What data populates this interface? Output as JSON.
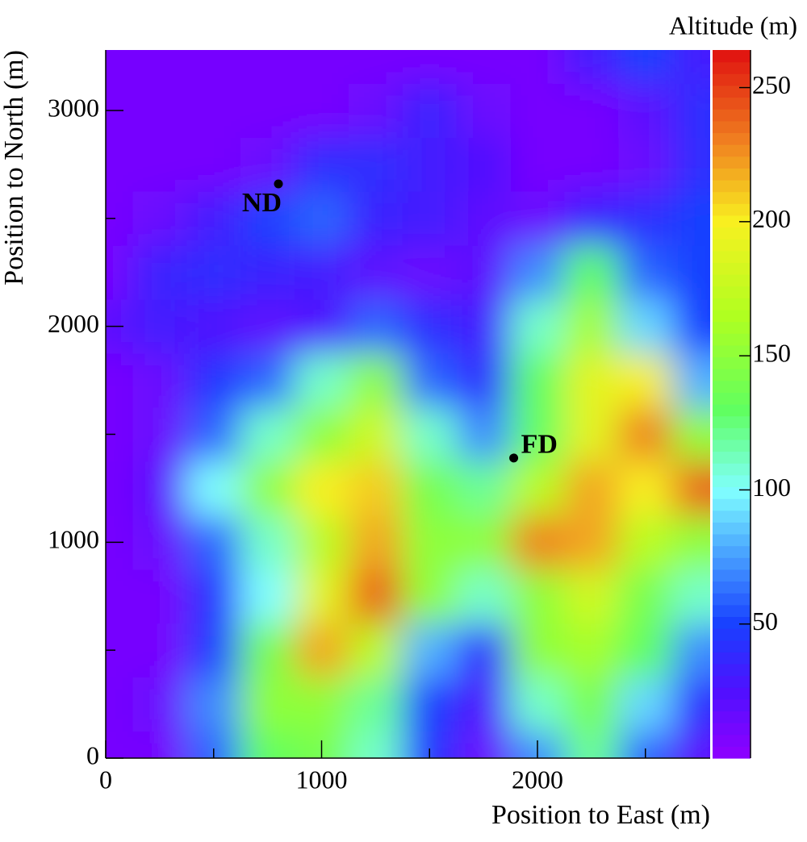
{
  "chart_data": {
    "type": "heatmap",
    "x_label": "Position to East (m)",
    "y_label": "Position to North (m)",
    "colorbar_title": "Altitude (m)",
    "xlim": [
      0,
      2800
    ],
    "ylim": [
      0,
      3280
    ],
    "xticks": [
      0,
      1000,
      2000
    ],
    "yticks": [
      0,
      1000,
      2000,
      3000
    ],
    "xminorticks": [
      500,
      1500,
      2500
    ],
    "yminorticks": [
      500,
      1500,
      2500
    ],
    "zlim": [
      0,
      264
    ],
    "zticks": [
      50,
      100,
      150,
      200,
      250
    ],
    "colorscale": [
      [
        0,
        "#9000ff"
      ],
      [
        25,
        "#5010ff"
      ],
      [
        50,
        "#1840ff"
      ],
      [
        80,
        "#50b0ff"
      ],
      [
        100,
        "#80ffff"
      ],
      [
        130,
        "#60ff60"
      ],
      [
        165,
        "#b0ff20"
      ],
      [
        200,
        "#f8f020"
      ],
      [
        230,
        "#f08020"
      ],
      [
        264,
        "#e01010"
      ]
    ],
    "x": [
      0,
      250,
      500,
      750,
      1000,
      1250,
      1500,
      1750,
      2000,
      2250,
      2500,
      2750
    ],
    "y": [
      0,
      250,
      500,
      750,
      1000,
      1250,
      1500,
      1750,
      2000,
      2250,
      2500,
      2750,
      3000,
      3250
    ],
    "z": [
      [
        10,
        10,
        60,
        130,
        140,
        110,
        45,
        15,
        70,
        120,
        60,
        20
      ],
      [
        10,
        15,
        70,
        150,
        150,
        120,
        50,
        25,
        110,
        140,
        90,
        40
      ],
      [
        10,
        10,
        50,
        140,
        220,
        170,
        80,
        40,
        150,
        160,
        130,
        70
      ],
      [
        10,
        10,
        45,
        100,
        190,
        240,
        150,
        110,
        150,
        180,
        140,
        110
      ],
      [
        10,
        15,
        60,
        110,
        170,
        220,
        150,
        150,
        230,
        220,
        170,
        150
      ],
      [
        10,
        20,
        100,
        150,
        200,
        210,
        140,
        120,
        170,
        220,
        200,
        240
      ],
      [
        10,
        15,
        60,
        110,
        150,
        180,
        110,
        70,
        130,
        190,
        230,
        150
      ],
      [
        10,
        15,
        45,
        60,
        110,
        150,
        60,
        40,
        130,
        190,
        200,
        80
      ],
      [
        20,
        30,
        25,
        20,
        25,
        60,
        40,
        30,
        110,
        160,
        90,
        50
      ],
      [
        10,
        35,
        40,
        35,
        30,
        20,
        15,
        20,
        70,
        130,
        60,
        50
      ],
      [
        10,
        15,
        30,
        50,
        60,
        35,
        30,
        20,
        15,
        35,
        40,
        50
      ],
      [
        10,
        10,
        10,
        15,
        40,
        40,
        30,
        25,
        10,
        10,
        15,
        40
      ],
      [
        10,
        10,
        10,
        10,
        10,
        15,
        35,
        15,
        10,
        10,
        20,
        40
      ],
      [
        10,
        10,
        10,
        10,
        10,
        10,
        10,
        10,
        10,
        30,
        50,
        30
      ]
    ],
    "points": [
      {
        "label": "ND",
        "x": 800,
        "y": 2660
      },
      {
        "label": "FD",
        "x": 1890,
        "y": 1390
      }
    ]
  }
}
